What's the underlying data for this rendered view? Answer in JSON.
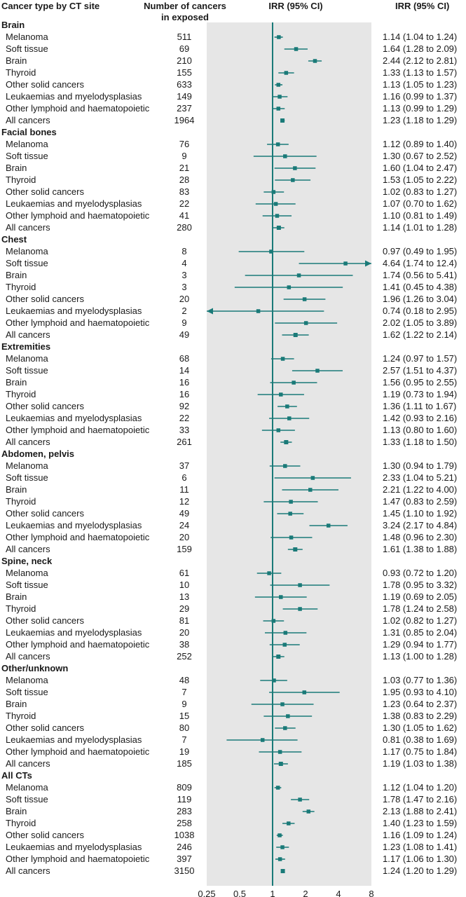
{
  "chart_data": {
    "type": "forest",
    "headers": {
      "label": "Cancer type by CT site",
      "count": "Number of cancers\nin exposed",
      "plot": "IRR (95% CI)",
      "ci": "IRR (95% CI)"
    },
    "x_scale": "log",
    "xlim": [
      0.25,
      8
    ],
    "reference_line": 1,
    "x_ticks": [
      0.25,
      0.5,
      1,
      2,
      4,
      8
    ],
    "x_tick_labels": [
      "0.25",
      "0.5",
      "1",
      "2",
      "4",
      "8"
    ],
    "colors": {
      "marker": "#1a7a78",
      "background": "#e6e6e6"
    },
    "groups": [
      {
        "name": "Brain",
        "rows": [
          {
            "label": "Melanoma",
            "n": "511",
            "irr": 1.14,
            "lo": 1.04,
            "hi": 1.24,
            "ci_text": "1.14 (1.04 to 1.24)"
          },
          {
            "label": "Soft tissue",
            "n": "69",
            "irr": 1.64,
            "lo": 1.28,
            "hi": 2.09,
            "ci_text": "1.64 (1.28 to 2.09)"
          },
          {
            "label": "Brain",
            "n": "210",
            "irr": 2.44,
            "lo": 2.12,
            "hi": 2.81,
            "ci_text": "2.44 (2.12 to 2.81)"
          },
          {
            "label": "Thyroid",
            "n": "155",
            "irr": 1.33,
            "lo": 1.13,
            "hi": 1.57,
            "ci_text": "1.33 (1.13 to 1.57)"
          },
          {
            "label": "Other solid cancers",
            "n": "633",
            "irr": 1.13,
            "lo": 1.05,
            "hi": 1.23,
            "ci_text": "1.13 (1.05 to 1.23)"
          },
          {
            "label": "Leukaemias and myelodysplasias",
            "n": "149",
            "irr": 1.16,
            "lo": 0.99,
            "hi": 1.37,
            "ci_text": "1.16 (0.99 to 1.37)"
          },
          {
            "label": "Other lymphoid and haematopoietic",
            "n": "237",
            "irr": 1.13,
            "lo": 0.99,
            "hi": 1.29,
            "ci_text": "1.13 (0.99 to 1.29)"
          },
          {
            "label": "All cancers",
            "n": "1964",
            "irr": 1.23,
            "lo": 1.18,
            "hi": 1.29,
            "ci_text": "1.23 (1.18 to 1.29)"
          }
        ]
      },
      {
        "name": "Facial bones",
        "rows": [
          {
            "label": "Melanoma",
            "n": "76",
            "irr": 1.12,
            "lo": 0.89,
            "hi": 1.4,
            "ci_text": "1.12 (0.89 to 1.40)"
          },
          {
            "label": "Soft tissue",
            "n": "9",
            "irr": 1.3,
            "lo": 0.67,
            "hi": 2.52,
            "ci_text": "1.30 (0.67 to 2.52)"
          },
          {
            "label": "Brain",
            "n": "21",
            "irr": 1.6,
            "lo": 1.04,
            "hi": 2.47,
            "ci_text": "1.60 (1.04 to 2.47)"
          },
          {
            "label": "Thyroid",
            "n": "28",
            "irr": 1.53,
            "lo": 1.05,
            "hi": 2.22,
            "ci_text": "1.53 (1.05 to 2.22)"
          },
          {
            "label": "Other solid cancers",
            "n": "83",
            "irr": 1.02,
            "lo": 0.83,
            "hi": 1.27,
            "ci_text": "1.02 (0.83 to 1.27)"
          },
          {
            "label": "Leukaemias and myelodysplasias",
            "n": "22",
            "irr": 1.07,
            "lo": 0.7,
            "hi": 1.62,
            "ci_text": "1.07 (0.70 to 1.62)"
          },
          {
            "label": "Other lymphoid and haematopoietic",
            "n": "41",
            "irr": 1.1,
            "lo": 0.81,
            "hi": 1.49,
            "ci_text": "1.10 (0.81 to 1.49)"
          },
          {
            "label": "All cancers",
            "n": "280",
            "irr": 1.14,
            "lo": 1.01,
            "hi": 1.28,
            "ci_text": "1.14 (1.01 to 1.28)"
          }
        ]
      },
      {
        "name": "Chest",
        "rows": [
          {
            "label": "Melanoma",
            "n": "8",
            "irr": 0.97,
            "lo": 0.49,
            "hi": 1.95,
            "ci_text": "0.97 (0.49 to 1.95)"
          },
          {
            "label": "Soft tissue",
            "n": "4",
            "irr": 4.64,
            "lo": 1.74,
            "hi": 12.4,
            "ci_text": "4.64 (1.74 to 12.4)"
          },
          {
            "label": "Brain",
            "n": "3",
            "irr": 1.74,
            "lo": 0.56,
            "hi": 5.41,
            "ci_text": "1.74 (0.56 to 5.41)"
          },
          {
            "label": "Thyroid",
            "n": "3",
            "irr": 1.41,
            "lo": 0.45,
            "hi": 4.38,
            "ci_text": "1.41 (0.45 to 4.38)"
          },
          {
            "label": "Other solid cancers",
            "n": "20",
            "irr": 1.96,
            "lo": 1.26,
            "hi": 3.04,
            "ci_text": "1.96 (1.26 to 3.04)"
          },
          {
            "label": "Leukaemias and myelodysplasias",
            "n": "2",
            "irr": 0.74,
            "lo": 0.18,
            "hi": 2.95,
            "ci_text": "0.74 (0.18 to 2.95)"
          },
          {
            "label": "Other lymphoid and haematopoietic",
            "n": "9",
            "irr": 2.02,
            "lo": 1.05,
            "hi": 3.89,
            "ci_text": "2.02 (1.05 to 3.89)"
          },
          {
            "label": "All cancers",
            "n": "49",
            "irr": 1.62,
            "lo": 1.22,
            "hi": 2.14,
            "ci_text": "1.62 (1.22 to 2.14)"
          }
        ]
      },
      {
        "name": "Extremities",
        "rows": [
          {
            "label": "Melanoma",
            "n": "68",
            "irr": 1.24,
            "lo": 0.97,
            "hi": 1.57,
            "ci_text": "1.24 (0.97 to 1.57)"
          },
          {
            "label": "Soft tissue",
            "n": "14",
            "irr": 2.57,
            "lo": 1.51,
            "hi": 4.37,
            "ci_text": "2.57 (1.51 to 4.37)"
          },
          {
            "label": "Brain",
            "n": "16",
            "irr": 1.56,
            "lo": 0.95,
            "hi": 2.55,
            "ci_text": "1.56 (0.95 to 2.55)"
          },
          {
            "label": "Thyroid",
            "n": "16",
            "irr": 1.19,
            "lo": 0.73,
            "hi": 1.94,
            "ci_text": "1.19 (0.73 to 1.94)"
          },
          {
            "label": "Other solid cancers",
            "n": "92",
            "irr": 1.36,
            "lo": 1.11,
            "hi": 1.67,
            "ci_text": "1.36 (1.11 to 1.67)"
          },
          {
            "label": "Leukaemias and myelodysplasias",
            "n": "22",
            "irr": 1.42,
            "lo": 0.93,
            "hi": 2.16,
            "ci_text": "1.42 (0.93 to 2.16)"
          },
          {
            "label": "Other lymphoid and haematopoietic",
            "n": "33",
            "irr": 1.13,
            "lo": 0.8,
            "hi": 1.6,
            "ci_text": "1.13 (0.80 to 1.60)"
          },
          {
            "label": "All cancers",
            "n": "261",
            "irr": 1.33,
            "lo": 1.18,
            "hi": 1.5,
            "ci_text": "1.33 (1.18 to 1.50)"
          }
        ]
      },
      {
        "name": "Abdomen, pelvis",
        "rows": [
          {
            "label": "Melanoma",
            "n": "37",
            "irr": 1.3,
            "lo": 0.94,
            "hi": 1.79,
            "ci_text": "1.30 (0.94 to 1.79)"
          },
          {
            "label": "Soft tissue",
            "n": "6",
            "irr": 2.33,
            "lo": 1.04,
            "hi": 5.21,
            "ci_text": "2.33 (1.04 to 5.21)"
          },
          {
            "label": "Brain",
            "n": "11",
            "irr": 2.21,
            "lo": 1.22,
            "hi": 4.0,
            "ci_text": "2.21 (1.22 to 4.00)"
          },
          {
            "label": "Thyroid",
            "n": "12",
            "irr": 1.47,
            "lo": 0.83,
            "hi": 2.59,
            "ci_text": "1.47 (0.83 to 2.59)"
          },
          {
            "label": "Other solid cancers",
            "n": "49",
            "irr": 1.45,
            "lo": 1.1,
            "hi": 1.92,
            "ci_text": "1.45 (1.10 to 1.92)"
          },
          {
            "label": "Leukaemias and myelodysplasias",
            "n": "24",
            "irr": 3.24,
            "lo": 2.17,
            "hi": 4.84,
            "ci_text": "3.24 (2.17 to 4.84)"
          },
          {
            "label": "Other lymphoid and haematopoietic",
            "n": "20",
            "irr": 1.48,
            "lo": 0.96,
            "hi": 2.3,
            "ci_text": "1.48 (0.96 to 2.30)"
          },
          {
            "label": "All cancers",
            "n": "159",
            "irr": 1.61,
            "lo": 1.38,
            "hi": 1.88,
            "ci_text": "1.61 (1.38 to 1.88)"
          }
        ]
      },
      {
        "name": "Spine, neck",
        "rows": [
          {
            "label": "Melanoma",
            "n": "61",
            "irr": 0.93,
            "lo": 0.72,
            "hi": 1.2,
            "ci_text": "0.93 (0.72 to 1.20)"
          },
          {
            "label": "Soft tissue",
            "n": "10",
            "irr": 1.78,
            "lo": 0.95,
            "hi": 3.32,
            "ci_text": "1.78 (0.95 to 3.32)"
          },
          {
            "label": "Brain",
            "n": "13",
            "irr": 1.19,
            "lo": 0.69,
            "hi": 2.05,
            "ci_text": "1.19 (0.69 to 2.05)"
          },
          {
            "label": "Thyroid",
            "n": "29",
            "irr": 1.78,
            "lo": 1.24,
            "hi": 2.58,
            "ci_text": "1.78 (1.24 to 2.58)"
          },
          {
            "label": "Other solid cancers",
            "n": "81",
            "irr": 1.02,
            "lo": 0.82,
            "hi": 1.27,
            "ci_text": "1.02 (0.82 to 1.27)"
          },
          {
            "label": "Leukaemias and myelodysplasias",
            "n": "20",
            "irr": 1.31,
            "lo": 0.85,
            "hi": 2.04,
            "ci_text": "1.31 (0.85 to 2.04)"
          },
          {
            "label": "Other lymphoid and haematopoietic",
            "n": "38",
            "irr": 1.29,
            "lo": 0.94,
            "hi": 1.77,
            "ci_text": "1.29 (0.94 to 1.77)"
          },
          {
            "label": "All cancers",
            "n": "252",
            "irr": 1.13,
            "lo": 1.0,
            "hi": 1.28,
            "ci_text": "1.13 (1.00 to 1.28)"
          }
        ]
      },
      {
        "name": "Other/unknown",
        "rows": [
          {
            "label": "Melanoma",
            "n": "48",
            "irr": 1.03,
            "lo": 0.77,
            "hi": 1.36,
            "ci_text": "1.03 (0.77 to 1.36)"
          },
          {
            "label": "Soft tissue",
            "n": "7",
            "irr": 1.95,
            "lo": 0.93,
            "hi": 4.1,
            "ci_text": "1.95 (0.93 to 4.10)"
          },
          {
            "label": "Brain",
            "n": "9",
            "irr": 1.23,
            "lo": 0.64,
            "hi": 2.37,
            "ci_text": "1.23 (0.64 to 2.37)"
          },
          {
            "label": "Thyroid",
            "n": "15",
            "irr": 1.38,
            "lo": 0.83,
            "hi": 2.29,
            "ci_text": "1.38 (0.83 to 2.29)"
          },
          {
            "label": "Other solid cancers",
            "n": "80",
            "irr": 1.3,
            "lo": 1.05,
            "hi": 1.62,
            "ci_text": "1.30 (1.05 to 1.62)"
          },
          {
            "label": "Leukaemias and myelodysplasias",
            "n": "7",
            "irr": 0.81,
            "lo": 0.38,
            "hi": 1.69,
            "ci_text": "0.81 (0.38 to 1.69)"
          },
          {
            "label": "Other lymphoid and haematopoietic",
            "n": "19",
            "irr": 1.17,
            "lo": 0.75,
            "hi": 1.84,
            "ci_text": "1.17 (0.75 to 1.84)"
          },
          {
            "label": "All cancers",
            "n": "185",
            "irr": 1.19,
            "lo": 1.03,
            "hi": 1.38,
            "ci_text": "1.19 (1.03 to 1.38)"
          }
        ]
      },
      {
        "name": "All CTs",
        "rows": [
          {
            "label": "Melanoma",
            "n": "809",
            "irr": 1.12,
            "lo": 1.04,
            "hi": 1.2,
            "ci_text": "1.12 (1.04 to 1.20)"
          },
          {
            "label": "Soft tissue",
            "n": "119",
            "irr": 1.78,
            "lo": 1.47,
            "hi": 2.16,
            "ci_text": "1.78 (1.47 to 2.16)"
          },
          {
            "label": "Brain",
            "n": "283",
            "irr": 2.13,
            "lo": 1.88,
            "hi": 2.41,
            "ci_text": "2.13 (1.88 to 2.41)"
          },
          {
            "label": "Thyroid",
            "n": "258",
            "irr": 1.4,
            "lo": 1.23,
            "hi": 1.59,
            "ci_text": "1.40 (1.23 to 1.59)"
          },
          {
            "label": "Other solid cancers",
            "n": "1038",
            "irr": 1.16,
            "lo": 1.09,
            "hi": 1.24,
            "ci_text": "1.16 (1.09 to 1.24)"
          },
          {
            "label": "Leukaemias and myelodysplasias",
            "n": "246",
            "irr": 1.23,
            "lo": 1.08,
            "hi": 1.41,
            "ci_text": "1.23 (1.08 to 1.41)"
          },
          {
            "label": "Other lymphoid and haematopoietic",
            "n": "397",
            "irr": 1.17,
            "lo": 1.06,
            "hi": 1.3,
            "ci_text": "1.17 (1.06 to 1.30)"
          },
          {
            "label": "All cancers",
            "n": "3150",
            "irr": 1.24,
            "lo": 1.2,
            "hi": 1.29,
            "ci_text": "1.24 (1.20 to 1.29)"
          }
        ]
      }
    ]
  }
}
